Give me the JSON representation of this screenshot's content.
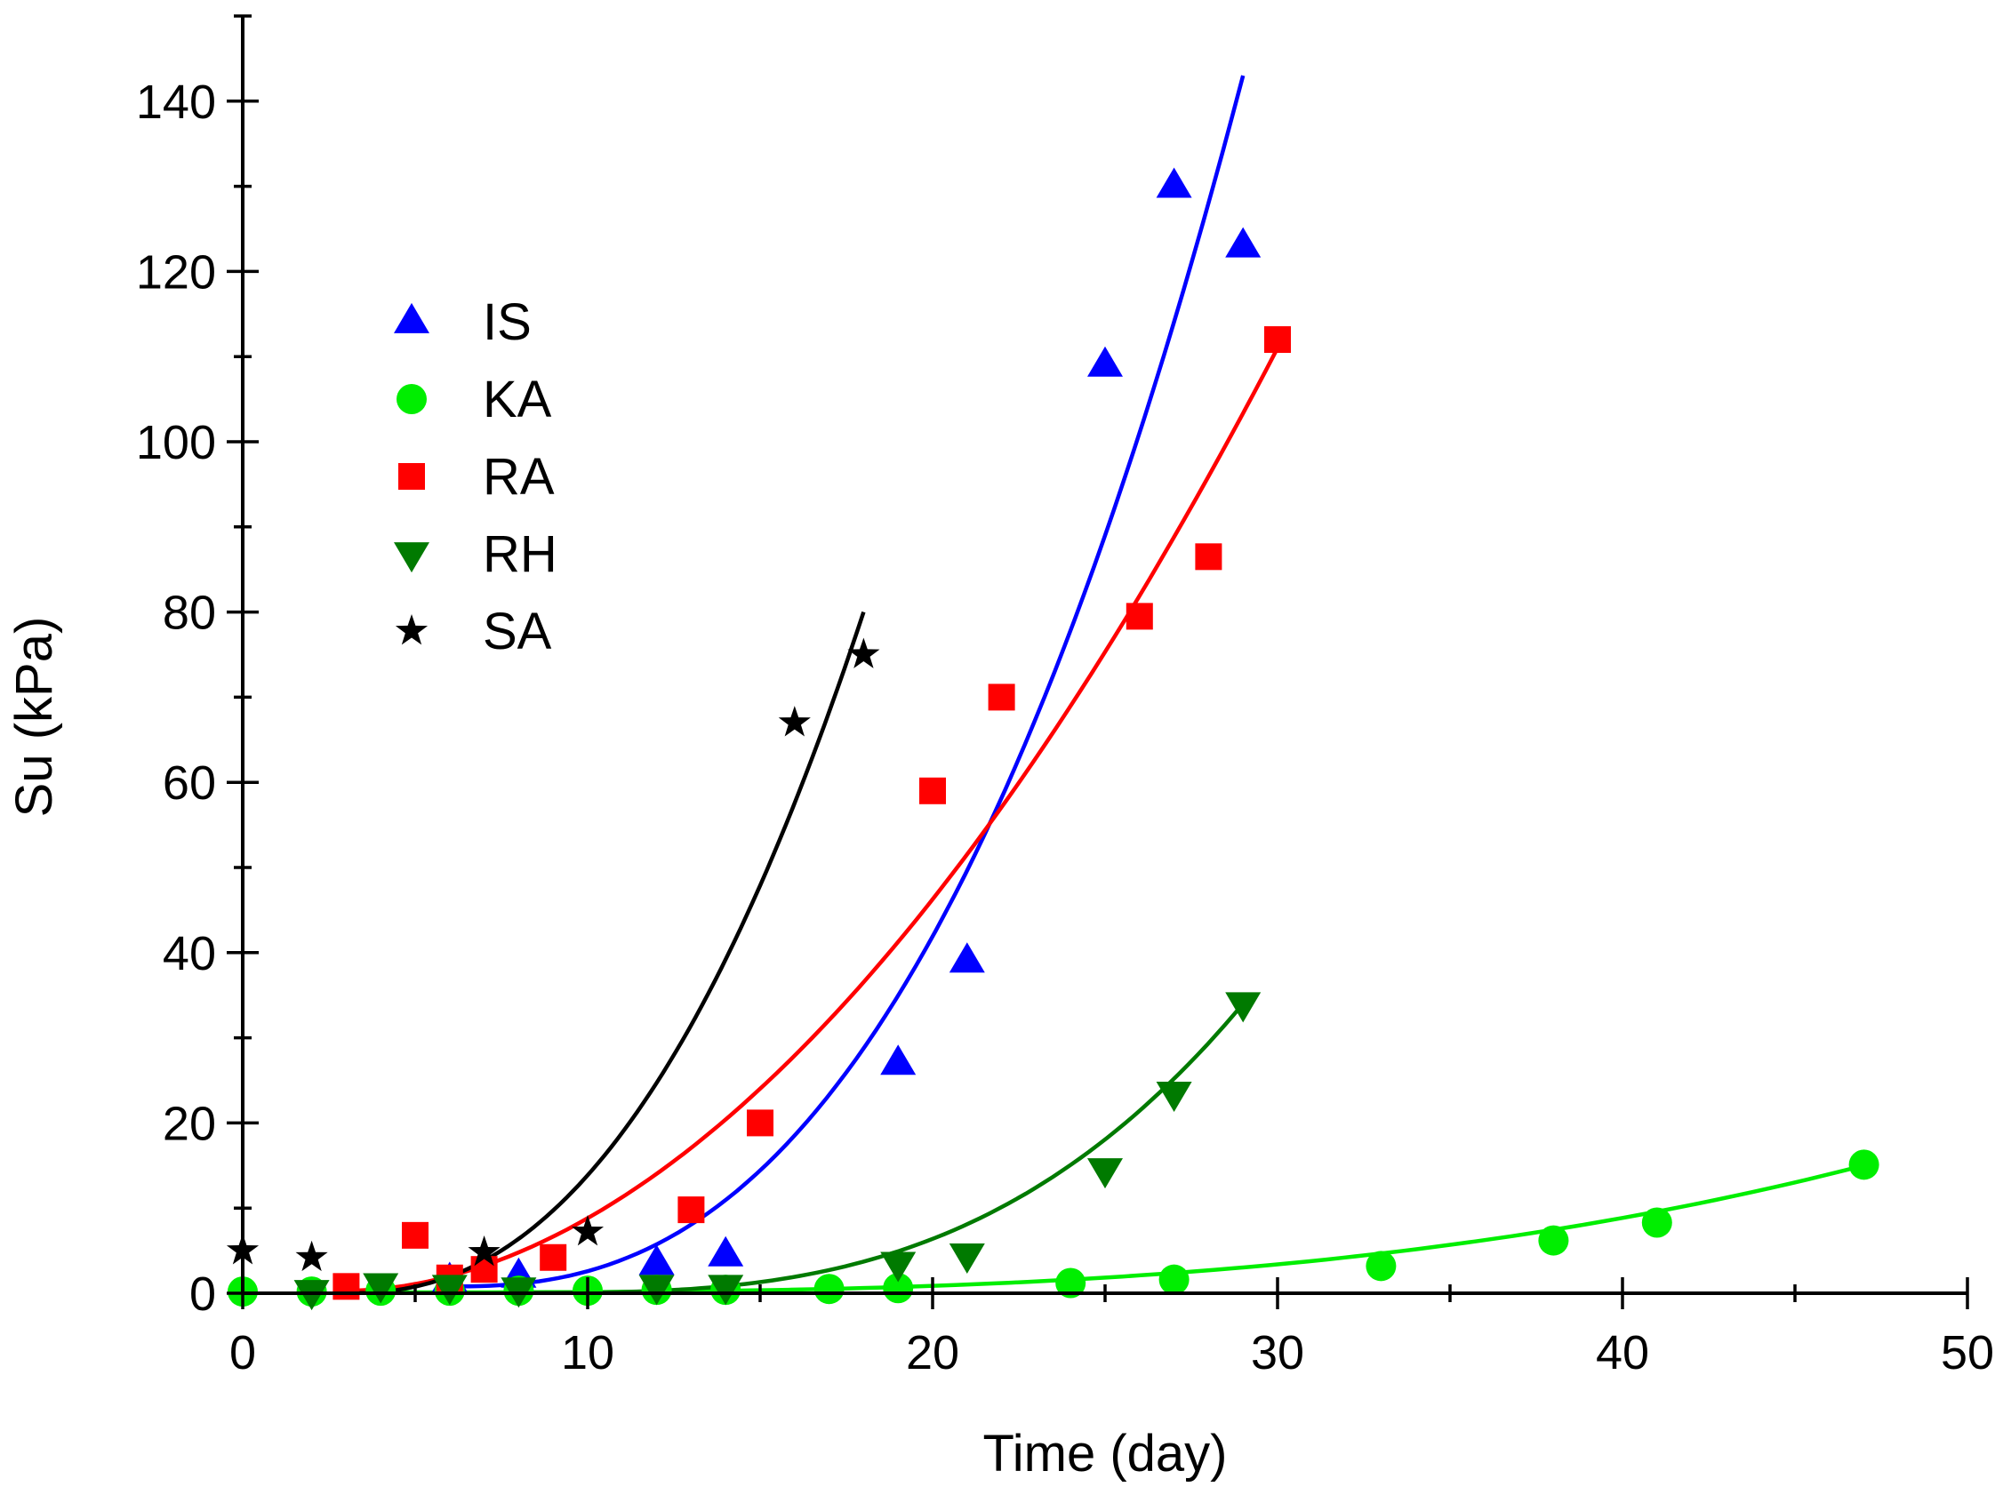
{
  "chart_data": {
    "type": "scatter",
    "xlabel": "Time (day)",
    "ylabel": "Su (kPa)",
    "xlim": [
      0,
      50
    ],
    "ylim": [
      0,
      150
    ],
    "x_ticks": [
      0,
      10,
      20,
      30,
      40,
      50
    ],
    "y_ticks": [
      0,
      20,
      40,
      60,
      80,
      100,
      120,
      140
    ],
    "x_tick_labels": [
      "0",
      "10",
      "20",
      "30",
      "40",
      "50"
    ],
    "y_tick_labels": [
      "0",
      "20",
      "40",
      "60",
      "80",
      "100",
      "120",
      "140"
    ],
    "grid": false,
    "legend_position": "upper-left",
    "series": [
      {
        "name": "IS",
        "marker": "triangle-up",
        "color": "#0000ff",
        "x": [
          6,
          8,
          12,
          14,
          19,
          21,
          25,
          27,
          29
        ],
        "y": [
          1.5,
          2,
          3.5,
          4.5,
          27,
          39,
          109,
          130,
          123
        ],
        "fit_x": [
          6,
          29
        ],
        "fit_y": [
          0.8,
          143
        ]
      },
      {
        "name": "KA",
        "marker": "circle",
        "color": "#00ee00",
        "x": [
          0,
          2,
          4,
          6,
          8,
          10,
          12,
          14,
          17,
          19,
          24,
          27,
          33,
          38,
          41,
          47
        ],
        "y": [
          0.2,
          0.2,
          0.3,
          0.3,
          0.3,
          0.3,
          0.4,
          0.4,
          0.5,
          0.6,
          1.2,
          1.6,
          3.2,
          6.2,
          8.3,
          15.1
        ],
        "fit_x": [
          4,
          47
        ],
        "fit_y": [
          0.1,
          15
        ]
      },
      {
        "name": "RA",
        "marker": "square",
        "color": "#ff0000",
        "x": [
          3,
          5,
          6,
          7,
          9,
          13,
          15,
          20,
          22,
          26,
          28,
          30
        ],
        "y": [
          0.8,
          6.8,
          1.8,
          2.8,
          4.2,
          9.8,
          20,
          59,
          70,
          79.5,
          86.5,
          112
        ],
        "fit_x": [
          3,
          30
        ],
        "fit_y": [
          0.3,
          111
        ]
      },
      {
        "name": "RH",
        "marker": "triangle-down",
        "color": "#007a00",
        "x": [
          2,
          4,
          6,
          8,
          12,
          14,
          19,
          21,
          25,
          27,
          29
        ],
        "y": [
          0.2,
          1,
          0.8,
          0.5,
          0.8,
          0.8,
          3.5,
          4.5,
          14.5,
          23.5,
          34
        ],
        "fit_x": [
          8,
          29
        ],
        "fit_y": [
          0.05,
          34
        ]
      },
      {
        "name": "SA",
        "marker": "star",
        "color": "#000000",
        "x": [
          0,
          2,
          7,
          10,
          16,
          18
        ],
        "y": [
          5,
          4.2,
          4.8,
          7.2,
          67,
          75
        ],
        "fit_x": [
          3,
          18
        ],
        "fit_y": [
          0,
          80
        ]
      }
    ]
  }
}
